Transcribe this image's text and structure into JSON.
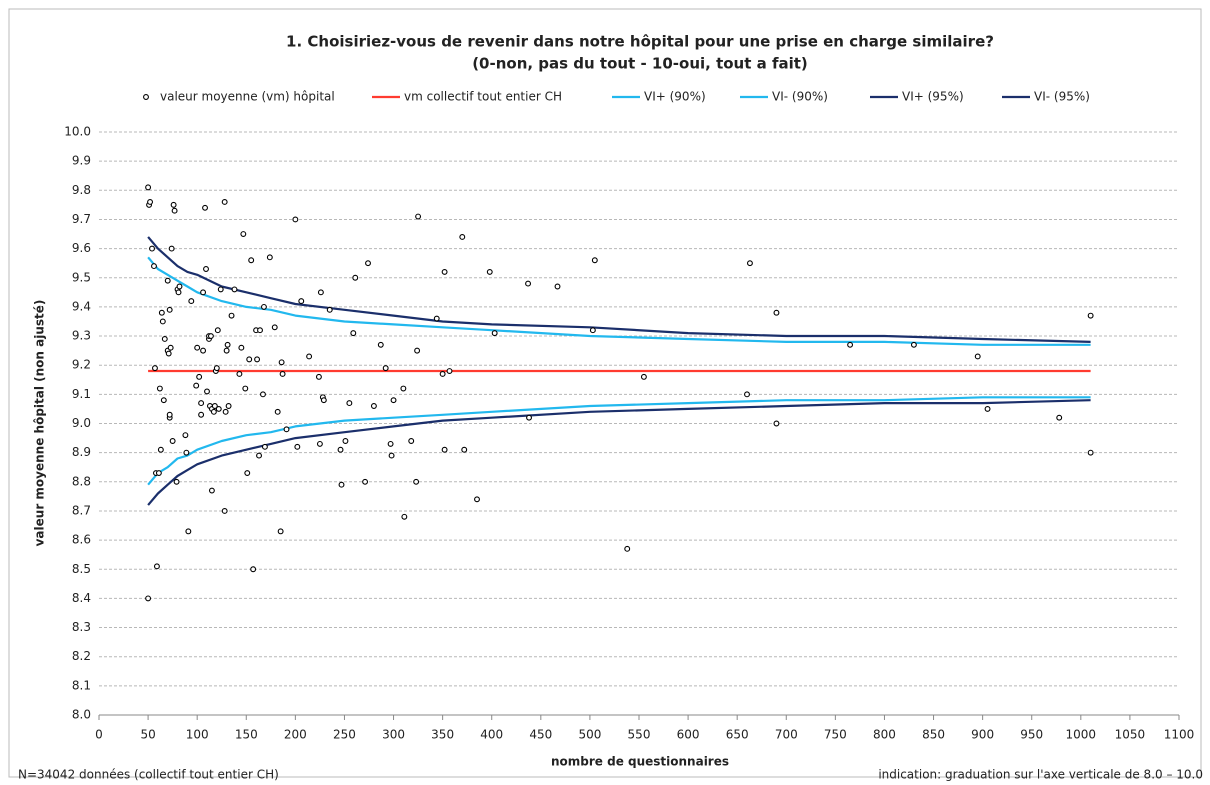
{
  "chart_data": {
    "type": "scatter",
    "title": "1. Choisiriez-vous de revenir dans notre hôpital pour une prise en charge similaire?",
    "subtitle": "(0-non, pas du tout - 10-oui, tout a fait)",
    "xlabel": "nombre de questionnaires",
    "ylabel": "valeur moyenne hôpital (non ajusté)",
    "note_left": "N=34042 données (collectif tout entier CH)",
    "note_right": "indication: graduation sur l'axe verticale de 8.0 – 10.0",
    "xlim": [
      0,
      1100
    ],
    "xticks": [
      0,
      50,
      100,
      150,
      200,
      250,
      300,
      350,
      400,
      450,
      500,
      550,
      600,
      650,
      700,
      750,
      800,
      850,
      900,
      950,
      1000,
      1050,
      1100
    ],
    "ylim": [
      8,
      10
    ],
    "yticks": [
      {
        "value": 8,
        "label": "8.0"
      },
      8.1,
      8.2,
      8.3,
      8.4,
      8.5,
      8.6,
      8.7,
      8.8,
      8.9,
      {
        "value": 9,
        "label": "9.0"
      },
      9.1,
      9.2,
      9.3,
      9.4,
      9.5,
      9.6,
      9.7,
      9.8,
      9.9,
      {
        "value": 10,
        "label": "10.0"
      }
    ],
    "grid": true,
    "legend": "top",
    "series": [
      {
        "name": "valeur moyenne (vm) hôpital",
        "color": "#000000",
        "mode": "markers",
        "x": [
          50,
          51,
          52,
          50,
          54,
          56,
          57,
          58,
          59,
          61,
          62,
          63,
          64,
          65,
          66,
          67,
          70,
          70,
          71,
          72,
          72,
          72,
          73,
          74,
          75,
          76,
          77,
          79,
          80,
          81,
          82,
          88,
          89,
          91,
          94,
          99,
          100,
          102,
          104,
          104,
          106,
          106,
          108,
          109,
          110,
          112,
          112,
          113,
          114,
          115,
          115,
          117,
          118,
          119,
          120,
          121,
          122,
          124,
          128,
          128,
          129,
          130,
          131,
          132,
          135,
          138,
          143,
          145,
          147,
          149,
          151,
          153,
          155,
          157,
          160,
          161,
          163,
          164,
          167,
          168,
          169,
          174,
          179,
          182,
          185,
          186,
          187,
          191,
          200,
          202,
          206,
          214,
          224,
          225,
          226,
          228,
          229,
          235,
          246,
          247,
          251,
          255,
          259,
          261,
          271,
          274,
          280,
          287,
          292,
          297,
          298,
          300,
          310,
          311,
          318,
          323,
          324,
          325,
          344,
          350,
          352,
          352,
          357,
          370,
          372,
          385,
          398,
          403,
          437,
          438,
          467,
          503,
          505,
          538,
          555,
          660,
          663,
          690,
          690,
          765,
          830,
          895,
          905,
          978,
          1010,
          1010
        ],
        "values": [
          9.81,
          9.75,
          9.76,
          8.4,
          9.6,
          9.54,
          9.19,
          8.83,
          8.51,
          8.83,
          9.12,
          8.91,
          9.38,
          9.35,
          9.08,
          9.29,
          9.49,
          9.25,
          9.24,
          9.39,
          9.02,
          9.03,
          9.26,
          9.6,
          8.94,
          9.75,
          9.73,
          8.8,
          9.46,
          9.45,
          9.47,
          8.96,
          8.9,
          8.63,
          9.42,
          9.13,
          9.26,
          9.16,
          9.07,
          9.03,
          9.25,
          9.45,
          9.74,
          9.53,
          9.11,
          9.29,
          9.3,
          9.06,
          9.3,
          8.77,
          9.05,
          9.04,
          9.06,
          9.18,
          9.19,
          9.32,
          9.05,
          9.46,
          8.7,
          9.76,
          9.04,
          9.25,
          9.27,
          9.06,
          9.37,
          9.46,
          9.17,
          9.26,
          9.65,
          9.12,
          8.83,
          9.22,
          9.56,
          8.5,
          9.32,
          9.22,
          8.89,
          9.32,
          9.1,
          9.4,
          8.92,
          9.57,
          9.33,
          9.04,
          8.63,
          9.21,
          9.17,
          8.98,
          9.7,
          8.92,
          9.42,
          9.23,
          9.16,
          8.93,
          9.45,
          9.09,
          9.08,
          9.39,
          8.91,
          8.79,
          8.94,
          9.07,
          9.31,
          9.5,
          8.8,
          9.55,
          9.06,
          9.27,
          9.19,
          8.93,
          8.89,
          9.08,
          9.12,
          8.68,
          8.94,
          8.8,
          9.25,
          9.71,
          9.36,
          9.17,
          9.52,
          8.91,
          9.18,
          9.64,
          8.91,
          8.74,
          9.52,
          9.31,
          9.48,
          9.02,
          9.47,
          9.32,
          9.56,
          8.57,
          9.16,
          9.1,
          9.55,
          9.38,
          9.0,
          9.27,
          9.27,
          9.23,
          9.05,
          9.02,
          9.37,
          8.9
        ]
      },
      {
        "name": "vm collectif tout entier CH",
        "color": "#ff3b30",
        "mode": "line",
        "x": [
          50,
          1010
        ],
        "values": [
          9.18,
          9.18
        ]
      },
      {
        "name": "VI+ (90%)",
        "color": "#22b8ee",
        "mode": "line",
        "x": [
          50,
          60,
          70,
          80,
          90,
          100,
          125,
          150,
          175,
          200,
          250,
          300,
          350,
          400,
          500,
          600,
          700,
          800,
          900,
          1010
        ],
        "values": [
          9.57,
          9.53,
          9.51,
          9.49,
          9.47,
          9.45,
          9.42,
          9.4,
          9.39,
          9.37,
          9.35,
          9.34,
          9.33,
          9.32,
          9.3,
          9.29,
          9.28,
          9.28,
          9.27,
          9.27
        ]
      },
      {
        "name": "VI- (90%)",
        "color": "#22b8ee",
        "mode": "line",
        "x": [
          50,
          60,
          70,
          80,
          90,
          100,
          125,
          150,
          175,
          200,
          250,
          300,
          350,
          400,
          500,
          600,
          700,
          800,
          900,
          1010
        ],
        "values": [
          8.79,
          8.83,
          8.85,
          8.88,
          8.89,
          8.91,
          8.94,
          8.96,
          8.97,
          8.99,
          9.01,
          9.02,
          9.03,
          9.04,
          9.06,
          9.07,
          9.08,
          9.08,
          9.09,
          9.09
        ]
      },
      {
        "name": "VI+ (95%)",
        "color": "#1b2f6b",
        "mode": "line",
        "x": [
          50,
          60,
          70,
          80,
          90,
          100,
          125,
          150,
          175,
          200,
          250,
          300,
          350,
          400,
          500,
          600,
          700,
          800,
          900,
          1010
        ],
        "values": [
          9.64,
          9.6,
          9.57,
          9.54,
          9.52,
          9.51,
          9.47,
          9.45,
          9.43,
          9.41,
          9.39,
          9.37,
          9.35,
          9.34,
          9.33,
          9.31,
          9.3,
          9.3,
          9.29,
          9.28
        ]
      },
      {
        "name": "VI- (95%)",
        "color": "#1b2f6b",
        "mode": "line",
        "x": [
          50,
          60,
          70,
          80,
          90,
          100,
          125,
          150,
          175,
          200,
          250,
          300,
          350,
          400,
          500,
          600,
          700,
          800,
          900,
          1010
        ],
        "values": [
          8.72,
          8.76,
          8.79,
          8.82,
          8.84,
          8.86,
          8.89,
          8.91,
          8.93,
          8.95,
          8.97,
          8.99,
          9.01,
          9.02,
          9.04,
          9.05,
          9.06,
          9.07,
          9.07,
          9.08
        ]
      }
    ]
  }
}
